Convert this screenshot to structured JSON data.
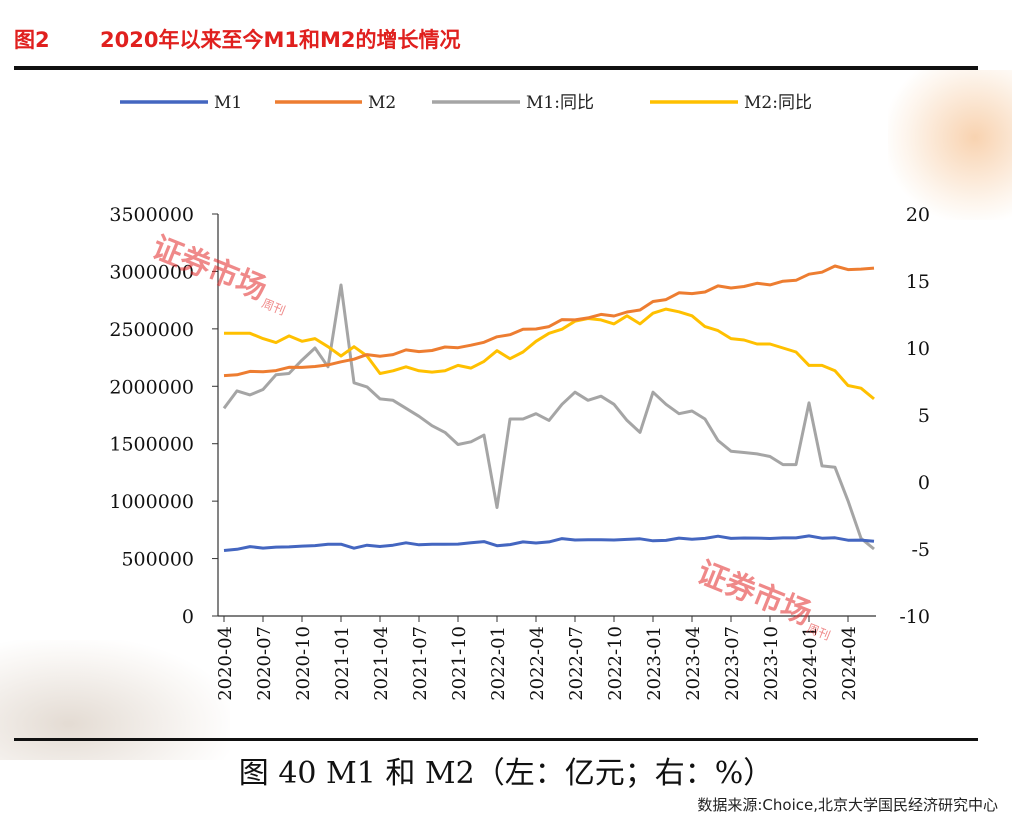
{
  "header": {
    "figure_no": "图2",
    "title": "2020年以来至今M1和M2的增长情况"
  },
  "caption": "图 40 M1 和 M2（左：亿元；右：%）",
  "source": "数据来源:Choice,北京大学国民经济研究中心",
  "watermark": {
    "text": "证券市场",
    "small": "周刊"
  },
  "colors": {
    "title": "#e0201e",
    "m1": "#4466c0",
    "m2": "#ed7d31",
    "m1_yoy": "#a5a5a5",
    "m2_yoy": "#ffc000"
  },
  "chart_data": {
    "type": "line",
    "title": "",
    "xlabel": "",
    "ylabel": "",
    "y_left": {
      "min": 0,
      "max": 3500000,
      "ticks": [
        "0",
        "500000",
        "1000000",
        "1500000",
        "2000000",
        "2500000",
        "3000000",
        "3500000"
      ]
    },
    "y_right": {
      "min": -10,
      "max": 20,
      "ticks": [
        "-10",
        "-5",
        "0",
        "5",
        "10",
        "15",
        "20"
      ]
    },
    "legend_position": "top",
    "x_ticks": [
      "2020-04",
      "2020-07",
      "2020-10",
      "2021-01",
      "2021-04",
      "2021-07",
      "2021-10",
      "2022-01",
      "2022-04",
      "2022-07",
      "2022-10",
      "2023-01",
      "2023-04",
      "2023-07",
      "2023-10",
      "2024-01",
      "2024-04"
    ],
    "x": [
      "2020-04",
      "2020-05",
      "2020-06",
      "2020-07",
      "2020-08",
      "2020-09",
      "2020-10",
      "2020-11",
      "2020-12",
      "2021-01",
      "2021-02",
      "2021-03",
      "2021-04",
      "2021-05",
      "2021-06",
      "2021-07",
      "2021-08",
      "2021-09",
      "2021-10",
      "2021-11",
      "2021-12",
      "2022-01",
      "2022-02",
      "2022-03",
      "2022-04",
      "2022-05",
      "2022-06",
      "2022-07",
      "2022-08",
      "2022-09",
      "2022-10",
      "2022-11",
      "2022-12",
      "2023-01",
      "2023-02",
      "2023-03",
      "2023-04",
      "2023-05",
      "2023-06",
      "2023-07",
      "2023-08",
      "2023-09",
      "2023-10",
      "2023-11",
      "2023-12",
      "2024-01",
      "2024-02",
      "2024-03",
      "2024-04",
      "2024-05",
      "2024-06"
    ],
    "series": [
      {
        "name": "M1",
        "axis": "left",
        "values": [
          570000,
          581000,
          604000,
          591000,
          600000,
          602000,
          609000,
          613000,
          625000,
          625000,
          590000,
          616000,
          605000,
          616000,
          637000,
          620000,
          624000,
          624000,
          626000,
          637000,
          648000,
          612000,
          622000,
          645000,
          636000,
          645000,
          674000,
          662000,
          664000,
          664000,
          662000,
          667000,
          672000,
          655000,
          658000,
          678000,
          669000,
          676000,
          695000,
          676000,
          679000,
          678000,
          675000,
          680000,
          680000,
          697000,
          677000,
          681000,
          660000,
          661000,
          650000
        ]
      },
      {
        "name": "M2",
        "axis": "left",
        "values": [
          2093000,
          2100000,
          2130000,
          2127000,
          2137000,
          2165000,
          2164000,
          2172000,
          2186000,
          2213000,
          2236000,
          2276000,
          2262000,
          2276000,
          2317000,
          2302000,
          2312000,
          2342000,
          2336000,
          2358000,
          2383000,
          2431000,
          2449000,
          2497000,
          2499000,
          2520000,
          2581000,
          2578000,
          2595000,
          2626000,
          2612000,
          2647000,
          2664000,
          2738000,
          2755000,
          2814000,
          2807000,
          2821000,
          2874000,
          2856000,
          2869000,
          2897000,
          2883000,
          2915000,
          2923000,
          2976000,
          2993000,
          3047000,
          3016000,
          3020000,
          3029000
        ]
      },
      {
        "name": "M1:同比",
        "axis": "right",
        "values": [
          5.5,
          6.8,
          6.5,
          6.9,
          8.0,
          8.1,
          9.1,
          10.0,
          8.6,
          14.7,
          7.4,
          7.1,
          6.2,
          6.1,
          5.5,
          4.9,
          4.2,
          3.7,
          2.8,
          3.0,
          3.5,
          -1.9,
          4.7,
          4.7,
          5.1,
          4.6,
          5.8,
          6.7,
          6.1,
          6.4,
          5.8,
          4.6,
          3.7,
          6.7,
          5.8,
          5.1,
          5.3,
          4.7,
          3.1,
          2.3,
          2.2,
          2.1,
          1.9,
          1.3,
          1.3,
          5.9,
          1.2,
          1.1,
          -1.4,
          -4.2,
          -5.0
        ]
      },
      {
        "name": "M2:同比",
        "axis": "right",
        "values": [
          11.1,
          11.1,
          11.1,
          10.7,
          10.4,
          10.9,
          10.5,
          10.7,
          10.1,
          9.4,
          10.1,
          9.4,
          8.1,
          8.3,
          8.6,
          8.3,
          8.2,
          8.3,
          8.7,
          8.5,
          9.0,
          9.8,
          9.2,
          9.7,
          10.5,
          11.1,
          11.4,
          12.0,
          12.2,
          12.1,
          11.8,
          12.4,
          11.8,
          12.6,
          12.9,
          12.7,
          12.4,
          11.6,
          11.3,
          10.7,
          10.6,
          10.3,
          10.3,
          10.0,
          9.7,
          8.7,
          8.7,
          8.3,
          7.2,
          7.0,
          6.2
        ]
      }
    ]
  }
}
